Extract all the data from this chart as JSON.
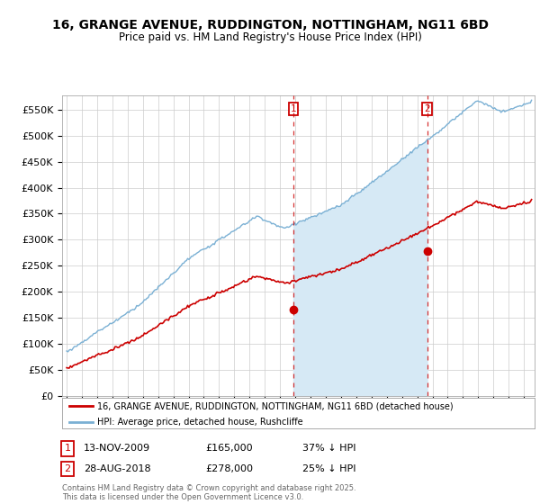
{
  "title": "16, GRANGE AVENUE, RUDDINGTON, NOTTINGHAM, NG11 6BD",
  "subtitle": "Price paid vs. HM Land Registry's House Price Index (HPI)",
  "ylim": [
    0,
    577000
  ],
  "yticks": [
    0,
    50000,
    100000,
    150000,
    200000,
    250000,
    300000,
    350000,
    400000,
    450000,
    500000,
    550000
  ],
  "ytick_labels": [
    "£0",
    "£50K",
    "£100K",
    "£150K",
    "£200K",
    "£250K",
    "£300K",
    "£350K",
    "£400K",
    "£450K",
    "£500K",
    "£550K"
  ],
  "hpi_color": "#7ab0d4",
  "hpi_fill_color": "#d6e9f5",
  "price_color": "#cc0000",
  "background_color": "#ffffff",
  "grid_color": "#cccccc",
  "sale1_x": 2009.87,
  "sale1_y": 165000,
  "sale2_x": 2018.65,
  "sale2_y": 278000,
  "xmin": 1995.0,
  "xmax": 2025.5,
  "footer_text": "Contains HM Land Registry data © Crown copyright and database right 2025.\nThis data is licensed under the Open Government Licence v3.0.",
  "legend_line1": "16, GRANGE AVENUE, RUDDINGTON, NOTTINGHAM, NG11 6BD (detached house)",
  "legend_line2": "HPI: Average price, detached house, Rushcliffe",
  "annot1_date": "13-NOV-2009",
  "annot1_price": "£165,000",
  "annot1_note": "37% ↓ HPI",
  "annot2_date": "28-AUG-2018",
  "annot2_price": "£278,000",
  "annot2_note": "25% ↓ HPI"
}
